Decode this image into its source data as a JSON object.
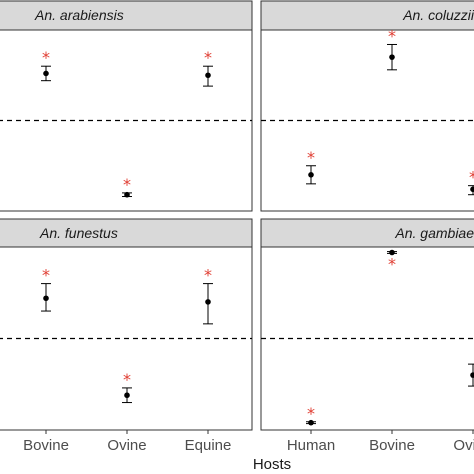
{
  "chart_data": {
    "type": "scatter",
    "xlabel": "Hosts",
    "ylim": [
      0,
      1
    ],
    "reference_line": 0.5,
    "marker_color": "#000000",
    "significance_color": "#e03c31",
    "significance_symbol": "*",
    "panels": [
      {
        "title": "An. arabiensis",
        "categories": [
          "Bovine",
          "Ovine",
          "Equine"
        ],
        "points": [
          {
            "x": "Bovine",
            "y": 0.76,
            "low": 0.72,
            "high": 0.8,
            "significant": true
          },
          {
            "x": "Ovine",
            "y": 0.09,
            "low": 0.08,
            "high": 0.1,
            "significant": true
          },
          {
            "x": "Equine",
            "y": 0.75,
            "low": 0.69,
            "high": 0.8,
            "significant": true
          }
        ]
      },
      {
        "title": "An. coluzzii",
        "categories": [
          "Human",
          "Bovine",
          "Ovine"
        ],
        "points": [
          {
            "x": "Human",
            "y": 0.2,
            "low": 0.15,
            "high": 0.25,
            "significant": true
          },
          {
            "x": "Bovine",
            "y": 0.85,
            "low": 0.78,
            "high": 0.92,
            "significant": true
          },
          {
            "x": "Ovine",
            "y": 0.12,
            "low": 0.09,
            "high": 0.14,
            "significant": true
          }
        ]
      },
      {
        "title": "An. funestus",
        "categories": [
          "Bovine",
          "Ovine",
          "Equine"
        ],
        "points": [
          {
            "x": "Bovine",
            "y": 0.72,
            "low": 0.65,
            "high": 0.8,
            "significant": true
          },
          {
            "x": "Ovine",
            "y": 0.19,
            "low": 0.15,
            "high": 0.23,
            "significant": true
          },
          {
            "x": "Equine",
            "y": 0.7,
            "low": 0.58,
            "high": 0.8,
            "significant": true
          }
        ]
      },
      {
        "title": "An. gambiae",
        "categories": [
          "Human",
          "Bovine",
          "Ovine"
        ],
        "points": [
          {
            "x": "Human",
            "y": 0.04,
            "low": 0.035,
            "high": 0.045,
            "significant": true
          },
          {
            "x": "Bovine",
            "y": 0.97,
            "low": 0.965,
            "high": 0.975,
            "significant": true
          },
          {
            "x": "Ovine",
            "y": 0.3,
            "low": 0.24,
            "high": 0.36,
            "significant": false
          }
        ]
      }
    ]
  }
}
